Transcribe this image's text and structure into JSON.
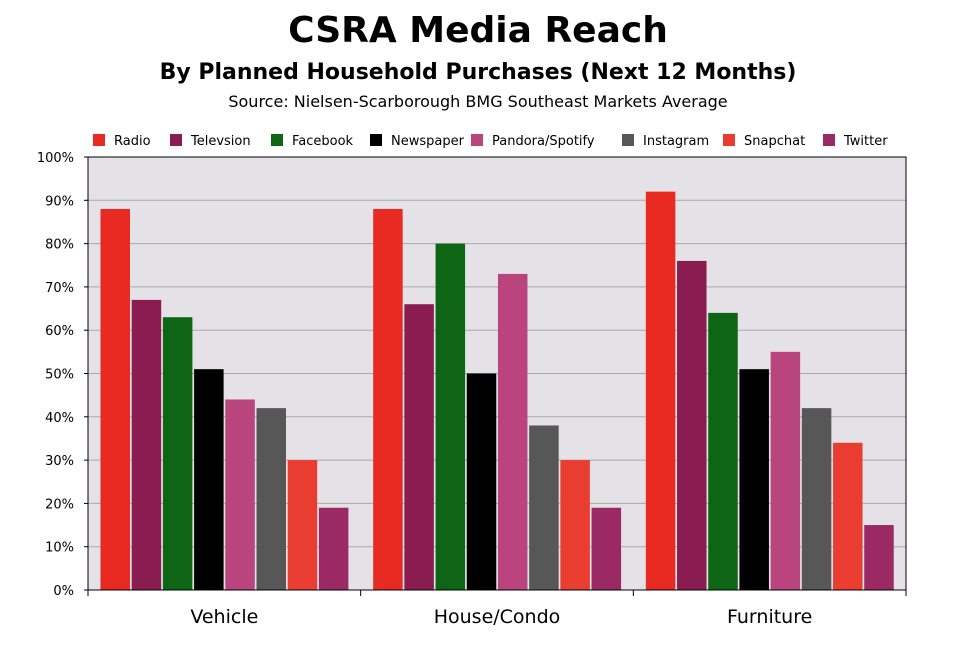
{
  "chart_data": {
    "type": "bar",
    "title": "CSRA Media Reach",
    "subtitle": "By Planned Household Purchases (Next 12 Months)",
    "source": "Source: Nielsen-Scarborough BMG Southeast Markets Average",
    "categories": [
      "Vehicle",
      "House/Condo",
      "Furniture"
    ],
    "series": [
      {
        "name": "Radio",
        "color": "#e82a22",
        "values": [
          88,
          88,
          92
        ]
      },
      {
        "name": "Televsion",
        "color": "#8b1c52",
        "values": [
          67,
          66,
          76
        ]
      },
      {
        "name": "Facebook",
        "color": "#0e6614",
        "values": [
          63,
          80,
          64
        ]
      },
      {
        "name": "Newspaper",
        "color": "#000000",
        "values": [
          51,
          50,
          51
        ]
      },
      {
        "name": "Pandora/Spotify",
        "color": "#ba447e",
        "values": [
          44,
          73,
          55
        ]
      },
      {
        "name": "Instagram",
        "color": "#575757",
        "values": [
          42,
          38,
          42
        ]
      },
      {
        "name": "Snapchat",
        "color": "#e83d30",
        "values": [
          30,
          30,
          34
        ]
      },
      {
        "name": "Twitter",
        "color": "#9b2a64",
        "values": [
          19,
          19,
          15
        ]
      }
    ],
    "ylim": [
      0,
      100
    ],
    "yticks": [
      "0%",
      "10%",
      "20%",
      "30%",
      "40%",
      "50%",
      "60%",
      "70%",
      "80%",
      "90%",
      "100%"
    ],
    "grid": true,
    "legend_position": "top",
    "plot_background": "#e4e2e7"
  }
}
